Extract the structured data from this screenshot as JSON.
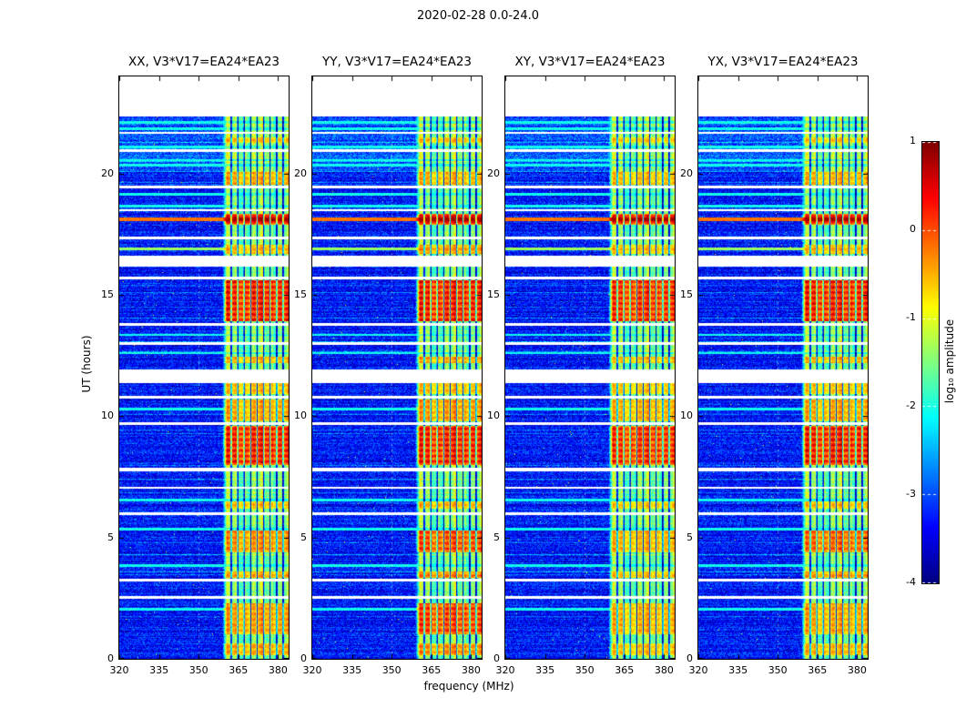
{
  "figure": {
    "title": "2020-02-28 0.0-24.0"
  },
  "chart_data": {
    "type": "heatmap",
    "title": "2020-02-28 0.0-24.0",
    "panels": [
      {
        "title": "XX, V3*V17=EA24*EA23",
        "bright_intervals": [
          [
            0.15,
            0.65,
            0.45
          ],
          [
            1.0,
            2.3,
            0.5
          ],
          [
            3.35,
            3.6,
            0.45
          ],
          [
            4.4,
            5.3,
            0.55
          ],
          [
            6.2,
            6.5,
            0.35
          ],
          [
            8.0,
            9.6,
            1.0
          ],
          [
            9.78,
            10.7,
            0.45
          ],
          [
            10.9,
            11.35,
            0.35
          ],
          [
            12.2,
            12.45,
            0.4
          ],
          [
            13.9,
            15.6,
            1.0
          ],
          [
            16.7,
            17.05,
            0.4
          ],
          [
            17.9,
            18.35,
            0.95
          ],
          [
            19.55,
            20.05,
            0.45
          ],
          [
            21.25,
            21.5,
            0.35
          ]
        ]
      },
      {
        "title": "YY, V3*V17=EA24*EA23",
        "bright_intervals": [
          [
            0.15,
            0.65,
            0.55
          ],
          [
            1.0,
            2.3,
            0.85
          ],
          [
            3.35,
            3.6,
            0.6
          ],
          [
            4.4,
            5.3,
            0.8
          ],
          [
            6.2,
            6.5,
            0.4
          ],
          [
            8.0,
            9.6,
            1.0
          ],
          [
            9.78,
            10.7,
            0.5
          ],
          [
            10.9,
            11.35,
            0.35
          ],
          [
            12.2,
            12.45,
            0.45
          ],
          [
            13.9,
            15.6,
            1.0
          ],
          [
            16.7,
            17.05,
            0.5
          ],
          [
            17.9,
            18.35,
            1.0
          ],
          [
            19.55,
            20.05,
            0.4
          ],
          [
            21.25,
            21.5,
            0.35
          ]
        ]
      },
      {
        "title": "XY, V3*V17=EA24*EA23",
        "bright_intervals": [
          [
            0.15,
            0.65,
            0.35
          ],
          [
            1.0,
            2.3,
            0.4
          ],
          [
            3.35,
            3.6,
            0.35
          ],
          [
            4.4,
            5.3,
            0.4
          ],
          [
            6.2,
            6.5,
            0.3
          ],
          [
            8.0,
            9.6,
            0.9
          ],
          [
            9.78,
            10.7,
            0.4
          ],
          [
            10.9,
            11.35,
            0.3
          ],
          [
            12.2,
            12.45,
            0.35
          ],
          [
            13.9,
            15.6,
            0.92
          ],
          [
            16.7,
            17.05,
            0.35
          ],
          [
            17.9,
            18.35,
            0.9
          ],
          [
            19.55,
            20.05,
            0.35
          ],
          [
            21.25,
            21.5,
            0.3
          ]
        ]
      },
      {
        "title": "YX, V3*V17=EA24*EA23",
        "bright_intervals": [
          [
            0.15,
            0.65,
            0.4
          ],
          [
            1.0,
            2.3,
            0.45
          ],
          [
            3.35,
            3.6,
            0.5
          ],
          [
            4.4,
            5.3,
            0.7
          ],
          [
            6.2,
            6.5,
            0.35
          ],
          [
            8.0,
            9.6,
            1.0
          ],
          [
            9.78,
            10.7,
            0.45
          ],
          [
            10.9,
            11.35,
            0.32
          ],
          [
            12.2,
            12.45,
            0.4
          ],
          [
            13.9,
            15.6,
            1.0
          ],
          [
            16.7,
            17.05,
            0.4
          ],
          [
            17.9,
            18.35,
            0.95
          ],
          [
            19.55,
            20.05,
            0.4
          ],
          [
            21.25,
            21.5,
            0.3
          ]
        ]
      }
    ],
    "x_axis": {
      "label": "frequency (MHz)",
      "range": [
        320,
        384
      ],
      "ticks": [
        320,
        335,
        350,
        365,
        380
      ]
    },
    "y_axis": {
      "label": "UT (hours)",
      "range": [
        0,
        24
      ],
      "ticks": [
        0,
        5,
        10,
        15,
        20
      ],
      "data_top": 22.35
    },
    "colorbar": {
      "label": "log₁₀ amplitude",
      "range": [
        -4,
        1
      ],
      "ticks": [
        1,
        0,
        -1,
        -2,
        -3,
        -4
      ],
      "colormap": "jet"
    },
    "features": {
      "background_level": -3.3,
      "rfi_band_mhz": [
        359.8,
        384
      ],
      "rfi_dark_lines_mhz": [
        362.3,
        364.8,
        367.2,
        369.7,
        372.1,
        374.6,
        377.0,
        379.5,
        381.9
      ],
      "white_gaps_ut": [
        [
          2.48,
          2.58
        ],
        [
          3.2,
          3.3
        ],
        [
          5.94,
          6.04
        ],
        [
          7.0,
          7.1
        ],
        [
          7.74,
          7.88
        ],
        [
          9.64,
          9.74
        ],
        [
          10.74,
          10.84
        ],
        [
          11.38,
          11.92
        ],
        [
          12.94,
          13.06
        ],
        [
          13.74,
          13.84
        ],
        [
          15.64,
          15.76
        ],
        [
          16.18,
          16.62
        ],
        [
          17.3,
          17.4
        ],
        [
          18.44,
          18.54
        ],
        [
          19.4,
          19.5
        ],
        [
          20.9,
          21.0
        ],
        [
          21.62,
          21.72
        ]
      ],
      "cyan_rows_ut": [
        2.05,
        3.85,
        5.35,
        6.55,
        10.3,
        12.6,
        13.35,
        18.65,
        19.15,
        20.35,
        20.55,
        21.1,
        21.85,
        22.1
      ],
      "warm_rows_ut": [
        16.9
      ],
      "red_line_ut": 18.1,
      "noisy_top_ut": [
        20.1,
        22.35
      ]
    }
  }
}
